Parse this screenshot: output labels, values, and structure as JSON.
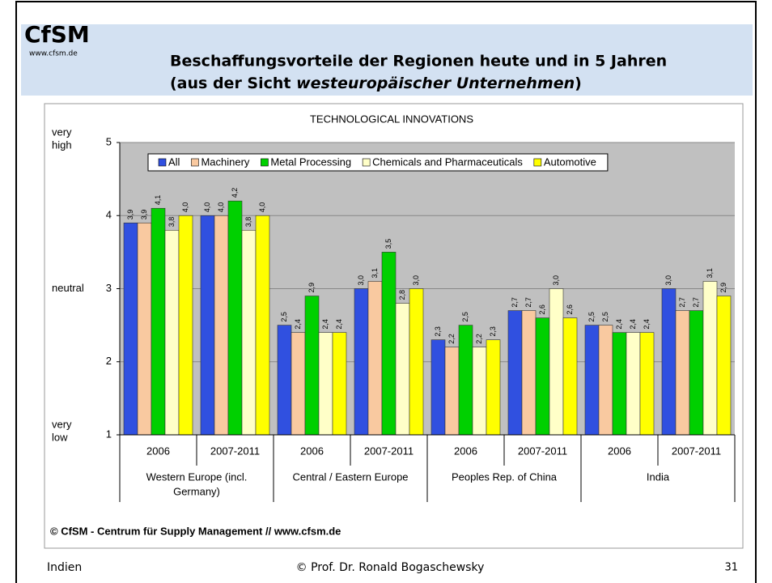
{
  "header": {
    "logo": "CfSM",
    "url": "www.cfsm.de",
    "title_line1": "Beschaffungsvorteile der Regionen heute und in 5 Jahren",
    "title_line2": [
      "(aus der Sicht ",
      "westeuropäischer Unternehmen",
      ")"
    ]
  },
  "chart_data": {
    "type": "bar",
    "title": "TECHNOLOGICAL INNOVATIONS",
    "categories": [
      "2006",
      "2007-2011",
      "2006",
      "2007-2011",
      "2006",
      "2007-2011",
      "2006",
      "2007-2011"
    ],
    "regions": [
      [
        "Western Europe (incl.",
        "Germany)"
      ],
      [
        "Central / Eastern Europe"
      ],
      [
        "Peoples Rep. of China"
      ],
      [
        "India"
      ]
    ],
    "series": [
      {
        "name": "All",
        "color": "#3050e0",
        "values": [
          3.9,
          4.0,
          2.5,
          3.0,
          2.3,
          2.7,
          2.5,
          3.0
        ],
        "value_labels": [
          "3,9",
          "4,0",
          "2,5",
          "3,0",
          "2,3",
          "2,7",
          "2,5",
          "3,0"
        ]
      },
      {
        "name": "Machinery",
        "color": "#f9c9a0",
        "values": [
          3.9,
          4.0,
          2.4,
          3.1,
          2.2,
          2.7,
          2.5,
          2.7
        ],
        "value_labels": [
          "3,9",
          "4,0",
          "2,4",
          "3,1",
          "2,2",
          "2,7",
          "2,5",
          "2,7"
        ]
      },
      {
        "name": "Metal Processing",
        "color": "#00d000",
        "values": [
          4.1,
          4.2,
          2.9,
          3.5,
          2.5,
          2.6,
          2.4,
          2.7
        ],
        "value_labels": [
          "4,1",
          "4,2",
          "2,9",
          "3,5",
          "2,5",
          "2,6",
          "2,4",
          "2,7"
        ]
      },
      {
        "name": "Chemicals and Pharmaceuticals",
        "color": "#ffffc8",
        "values": [
          3.8,
          3.8,
          2.4,
          2.8,
          2.2,
          3.0,
          2.4,
          3.1
        ],
        "value_labels": [
          "3,8",
          "3,8",
          "2,4",
          "2,8",
          "2,2",
          "3,0",
          "2,4",
          "3,1"
        ]
      },
      {
        "name": "Automotive",
        "color": "#ffff00",
        "values": [
          4.0,
          4.0,
          2.4,
          3.0,
          2.3,
          2.6,
          2.4,
          2.9
        ],
        "value_labels": [
          "4,0",
          "4,0",
          "2,4",
          "3,0",
          "2,3",
          "2,6",
          "2,4",
          "2,9"
        ]
      }
    ],
    "ylim": [
      1,
      5
    ],
    "yticks": [
      1,
      2,
      3,
      4,
      5
    ],
    "grid": true,
    "y_annotations": [
      {
        "value": 5,
        "lines": [
          "very",
          "high"
        ]
      },
      {
        "value": 3,
        "lines": [
          "neutral"
        ]
      },
      {
        "value": 1,
        "lines": [
          "very",
          "low"
        ]
      }
    ],
    "source": "© CfSM - Centrum für Supply Management // www.cfsm.de"
  },
  "footer": {
    "left": "Indien",
    "center": "© Prof. Dr. Ronald Bogaschewsky",
    "page": "31"
  }
}
